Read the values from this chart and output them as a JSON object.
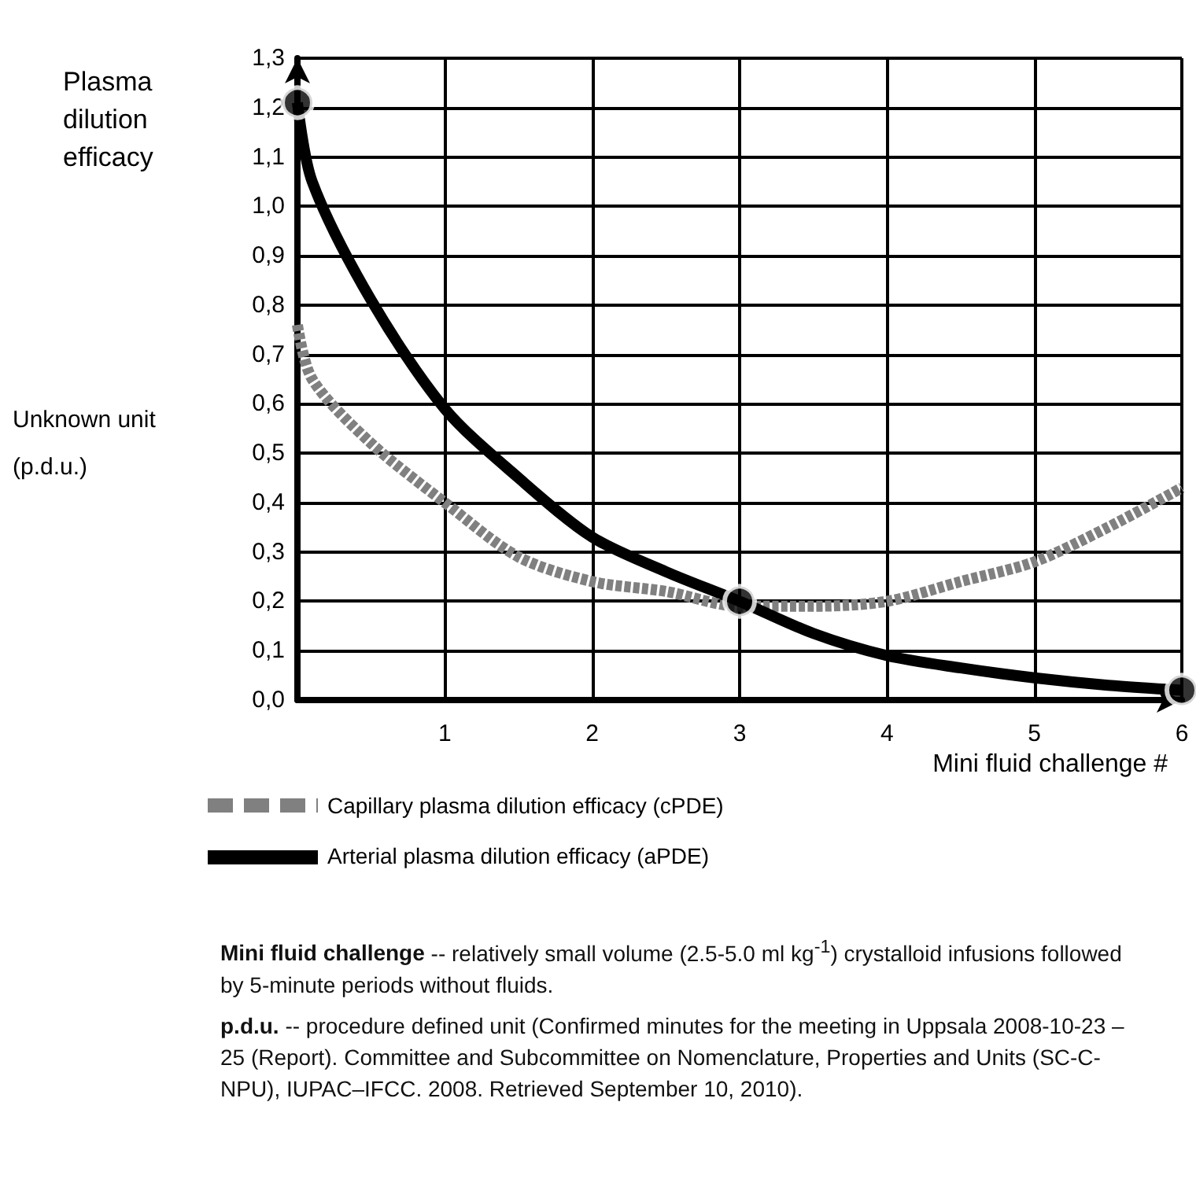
{
  "chart_data": {
    "type": "line",
    "xlabel": "Mini fluid challenge #",
    "ylabel": "Plasma dilution efficacy",
    "xlim": [
      0,
      6
    ],
    "xticks": [
      {
        "value": 0,
        "label": null
      },
      1,
      2,
      3,
      4,
      5,
      6
    ],
    "ylim": [
      0,
      1.3
    ],
    "yticks": [
      {
        "value": 0,
        "label": "0,0"
      },
      {
        "value": 0.1,
        "label": "0,1"
      },
      {
        "value": 0.2,
        "label": "0,2"
      },
      {
        "value": 0.3,
        "label": "0,3"
      },
      {
        "value": 0.4,
        "label": "0,4"
      },
      {
        "value": 0.5,
        "label": "0,5"
      },
      {
        "value": 0.6,
        "label": "0,6"
      },
      {
        "value": 0.7,
        "label": "0,7"
      },
      {
        "value": 0.8,
        "label": "0,8"
      },
      {
        "value": 0.9,
        "label": "0,9"
      },
      {
        "value": 1.0,
        "label": "1,0"
      },
      {
        "value": 1.1,
        "label": "1,1"
      },
      {
        "value": 1.2,
        "label": "1,2"
      },
      {
        "value": 1.3,
        "label": "1,3"
      }
    ],
    "grid": true,
    "legend": "bottom",
    "series": [
      {
        "name": "Capillary plasma dilution efficacy (cPDE)",
        "color": "#808080",
        "line_style": "dashed",
        "marker": "none",
        "x": [
          0,
          0.1,
          0.5,
          1,
          1.5,
          2,
          2.5,
          3,
          3.5,
          4,
          4.5,
          5,
          5.5,
          6
        ],
        "values": [
          0.76,
          0.65,
          0.52,
          0.4,
          0.29,
          0.24,
          0.22,
          0.19,
          0.19,
          0.2,
          0.24,
          0.28,
          0.35,
          0.43
        ]
      },
      {
        "name": "Arterial plasma dilution efficacy (aPDE)",
        "color": "#000000",
        "line_style": "solid",
        "marker": "none",
        "x": [
          0,
          0.1,
          0.5,
          1,
          1.5,
          2,
          2.5,
          3,
          3.5,
          4,
          4.5,
          5,
          5.5,
          6
        ],
        "values": [
          1.21,
          1.05,
          0.81,
          0.59,
          0.45,
          0.33,
          0.26,
          0.2,
          0.135,
          0.09,
          0.065,
          0.045,
          0.03,
          0.02
        ]
      },
      {
        "type": "scatter",
        "color": "#000000",
        "marker": "circle",
        "x": [
          0,
          3,
          6
        ],
        "values": [
          1.21,
          0.2,
          0.02
        ]
      }
    ],
    "annotations": [
      "Unknown unit (p.d.u.)",
      "Mini fluid challenge -- relatively small volume (2.5-5.0 ml kg$^{-1}$) crystalloid infusions followed by 5-minute periods without fluids.",
      "p.d.u. -- procedure defined unit (Confirmed minutes for the meeting in Uppsala 2008-10-23 – 25 (Report). Committee and Subcommittee on Nomenclature, Properties and Units (SC-C-NPU), IUPAC–IFCC. 2008. Retrieved September 10, 2010)."
    ]
  }
}
